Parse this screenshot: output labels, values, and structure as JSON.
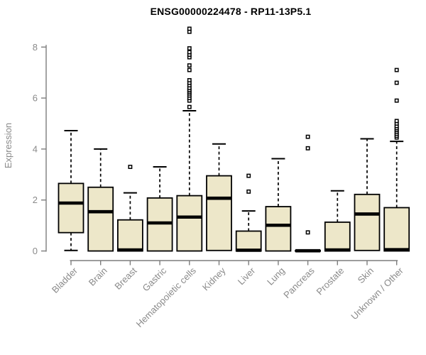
{
  "title": "ENSG00000224478 - RP11-13P5.1",
  "colors": {
    "background": "#ffffff",
    "box_fill": "#ede7c9",
    "box_stroke": "#000000",
    "median_color": "#000000",
    "whisker_color": "#000000",
    "outlier_color": "#000000",
    "axis_line": "#7d7d7d",
    "tick_text": "#8a8a8a",
    "title_text": "#000000"
  },
  "chart_data": {
    "type": "box",
    "title": "ENSG00000224478 - RP11-13P5.1",
    "xlabel": "",
    "ylabel": "Expression",
    "ylim": [
      0,
      8.8
    ],
    "yticks": [
      0,
      2,
      4,
      6,
      8
    ],
    "grid": false,
    "legend": "none",
    "categories": [
      "Bladder",
      "Brain",
      "Breast",
      "Gastric",
      "Hematopoietic cells",
      "Kidney",
      "Liver",
      "Lung",
      "Pancreas",
      "Prostate",
      "Skin",
      "Unknown / Other"
    ],
    "stats": [
      {
        "low": 0.02,
        "q1": 0.72,
        "median": 1.88,
        "q3": 2.65,
        "high": 4.72,
        "outliers": []
      },
      {
        "low": 0.0,
        "q1": 0.0,
        "median": 1.54,
        "q3": 2.5,
        "high": 4.0,
        "outliers": []
      },
      {
        "low": 0.0,
        "q1": 0.0,
        "median": 0.04,
        "q3": 1.22,
        "high": 2.28,
        "outliers": [
          3.3
        ]
      },
      {
        "low": 0.0,
        "q1": 0.0,
        "median": 1.1,
        "q3": 2.08,
        "high": 3.3,
        "outliers": []
      },
      {
        "low": 0.0,
        "q1": 0.0,
        "median": 1.33,
        "q3": 2.17,
        "high": 5.5,
        "outliers": [
          5.65,
          5.9,
          6.0,
          6.1,
          6.18,
          6.25,
          6.32,
          6.4,
          6.5,
          6.6,
          6.7,
          7.1,
          7.28,
          7.6,
          7.7,
          7.8,
          7.95,
          8.6,
          8.72
        ]
      },
      {
        "low": 0.02,
        "q1": 0.02,
        "median": 2.07,
        "q3": 2.95,
        "high": 4.2,
        "outliers": []
      },
      {
        "low": 0.0,
        "q1": 0.0,
        "median": 0.03,
        "q3": 0.78,
        "high": 1.57,
        "outliers": [
          2.33,
          2.95
        ]
      },
      {
        "low": 0.0,
        "q1": 0.0,
        "median": 1.01,
        "q3": 1.74,
        "high": 3.62,
        "outliers": []
      },
      {
        "low": 0.0,
        "q1": 0.0,
        "median": 0.01,
        "q3": 0.02,
        "high": 0.02,
        "outliers": [
          0.73,
          4.03,
          4.48
        ]
      },
      {
        "low": 0.0,
        "q1": 0.0,
        "median": 0.04,
        "q3": 1.13,
        "high": 2.36,
        "outliers": []
      },
      {
        "low": 0.02,
        "q1": 0.02,
        "median": 1.45,
        "q3": 2.22,
        "high": 4.4,
        "outliers": []
      },
      {
        "low": 0.0,
        "q1": 0.0,
        "median": 0.05,
        "q3": 1.7,
        "high": 4.3,
        "outliers": [
          4.45,
          4.52,
          4.6,
          4.68,
          4.75,
          4.82,
          4.9,
          5.0,
          5.1,
          5.9,
          6.6,
          7.1
        ]
      }
    ]
  }
}
